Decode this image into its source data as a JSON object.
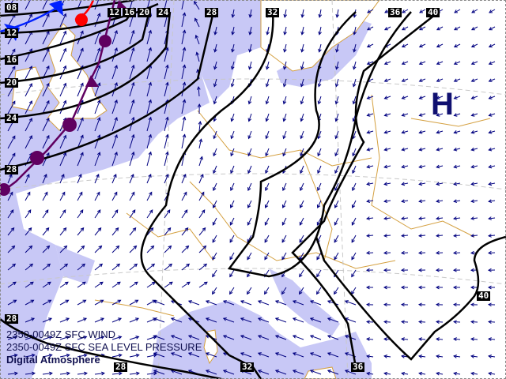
{
  "captions": {
    "wind": "2350-0049Z SFC WIND",
    "pressure": "2350-0049Z SFC SEA LEVEL PRESSURE",
    "source": "Digital Atmosphere"
  },
  "high_marker": "H",
  "isobar_labels": {
    "top": [
      "12",
      "16",
      "20",
      "24",
      "28",
      "32",
      "36",
      "40"
    ],
    "left": [
      "08",
      "12",
      "16",
      "20",
      "24",
      "28",
      "28"
    ],
    "bottom": [
      "28",
      "32",
      "36"
    ],
    "right": [
      "40"
    ]
  },
  "colors": {
    "sea": "#c8c8f6",
    "land": "#ffffff",
    "borders": "#d4a040",
    "isobars": "#000000",
    "wind_arrows": "#000080",
    "cold_front": "#0020ff",
    "warm_front": "#ff0000",
    "occluded_front": "#600060"
  }
}
